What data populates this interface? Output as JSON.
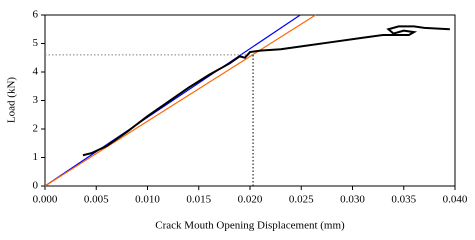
{
  "chart_data": {
    "type": "line",
    "xlabel": "Crack Mouth Opening Displacement (mm)",
    "ylabel": "Load (kN)",
    "xlim": [
      0,
      0.04
    ],
    "ylim": [
      0,
      6
    ],
    "xticks": [
      {
        "value": 0,
        "label": "0.000"
      },
      {
        "value": 0.005,
        "label": "0.005"
      },
      {
        "value": 0.01,
        "label": "0.010"
      },
      {
        "value": 0.015,
        "label": "0.015"
      },
      {
        "value": 0.02,
        "label": "0.020"
      },
      {
        "value": 0.025,
        "label": "0.025"
      },
      {
        "value": 0.03,
        "label": "0.030"
      },
      {
        "value": 0.035,
        "label": "0.035"
      },
      {
        "value": 0.04,
        "label": "0.040"
      }
    ],
    "yticks": [
      0,
      1,
      2,
      3,
      4,
      5,
      6
    ],
    "grid": false,
    "series": [
      {
        "color": "#0000ff",
        "style": "solid",
        "x": [
          0,
          0.0249
        ],
        "values": [
          0,
          6
        ]
      },
      {
        "color": "#ff6600",
        "style": "solid",
        "x": [
          0,
          0.0264
        ],
        "values": [
          0,
          6
        ]
      },
      {
        "color": "#808080",
        "style": "dotted",
        "x": [
          0,
          0.0203
        ],
        "values": [
          4.6,
          4.6
        ]
      },
      {
        "color": "#000000",
        "style": "dotted",
        "x": [
          0.0203,
          0.0203
        ],
        "values": [
          0,
          4.6
        ]
      },
      {
        "color": "#000000",
        "style": "solid",
        "x": [
          0.0037,
          0.0045,
          0.006,
          0.008,
          0.01,
          0.012,
          0.014,
          0.016,
          0.018,
          0.019,
          0.0195,
          0.02,
          0.021,
          0.023,
          0.025,
          0.028,
          0.031,
          0.033,
          0.0355,
          0.036,
          0.035,
          0.034,
          0.0335,
          0.0345,
          0.036,
          0.037,
          0.0395
        ],
        "values": [
          1.08,
          1.15,
          1.4,
          1.9,
          2.45,
          2.95,
          3.45,
          3.9,
          4.3,
          4.55,
          4.5,
          4.7,
          4.75,
          4.8,
          4.9,
          5.05,
          5.2,
          5.3,
          5.3,
          5.4,
          5.45,
          5.35,
          5.5,
          5.6,
          5.6,
          5.55,
          5.5
        ]
      }
    ]
  }
}
